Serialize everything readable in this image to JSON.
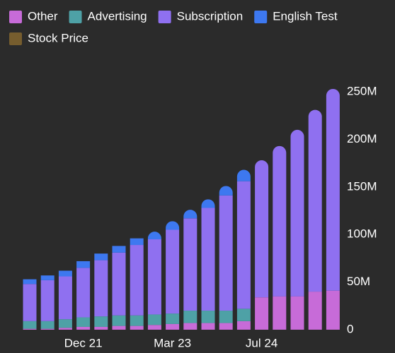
{
  "chart_data": {
    "type": "stacked-bar",
    "categories": [
      null,
      null,
      null,
      "Dec 21",
      null,
      null,
      null,
      null,
      "Mar 23",
      null,
      null,
      null,
      null,
      "Jul 24",
      null,
      null,
      null,
      null
    ],
    "series": [
      {
        "name": "Other",
        "color": "#c76bd8",
        "values": [
          1000000,
          1000000,
          2000000,
          3000000,
          3000000,
          4000000,
          4000000,
          5000000,
          6000000,
          7000000,
          7000000,
          7000000,
          9000000,
          34000000,
          35000000,
          35000000,
          40000000,
          41000000
        ]
      },
      {
        "name": "Advertising",
        "color": "#4ea1a6",
        "values": [
          8000000,
          8000000,
          9000000,
          10000000,
          11000000,
          11000000,
          11000000,
          11000000,
          11000000,
          13000000,
          13000000,
          13000000,
          13000000,
          0,
          0,
          0,
          0,
          0
        ]
      },
      {
        "name": "Subscription",
        "color": "#8f70f0",
        "values": [
          39000000,
          43000000,
          45000000,
          52000000,
          59000000,
          66000000,
          74000000,
          79000000,
          88000000,
          97000000,
          108000000,
          121000000,
          134000000,
          144000000,
          158000000,
          175000000,
          191000000,
          212000000
        ]
      },
      {
        "name": "English Test",
        "color": "#3d78f0",
        "values": [
          5000000,
          5000000,
          6000000,
          7000000,
          7000000,
          7000000,
          7000000,
          8000000,
          9000000,
          9000000,
          9000000,
          10000000,
          12000000,
          0,
          0,
          0,
          0,
          0
        ]
      },
      {
        "name": "Stock Price",
        "color": "#8a6a30",
        "hidden": true,
        "values": [
          null,
          null,
          null,
          null,
          null,
          null,
          null,
          null,
          null,
          null,
          null,
          null,
          null,
          null,
          null,
          null,
          null,
          null
        ]
      }
    ],
    "ylim": [
      0,
      250000000
    ],
    "yticks": [
      {
        "value": 0,
        "label": "0"
      },
      {
        "value": 50000000,
        "label": "50M"
      },
      {
        "value": 100000000,
        "label": "100M"
      },
      {
        "value": 150000000,
        "label": "150M"
      },
      {
        "value": 200000000,
        "label": "200M"
      },
      {
        "value": 250000000,
        "label": "250M"
      }
    ]
  }
}
